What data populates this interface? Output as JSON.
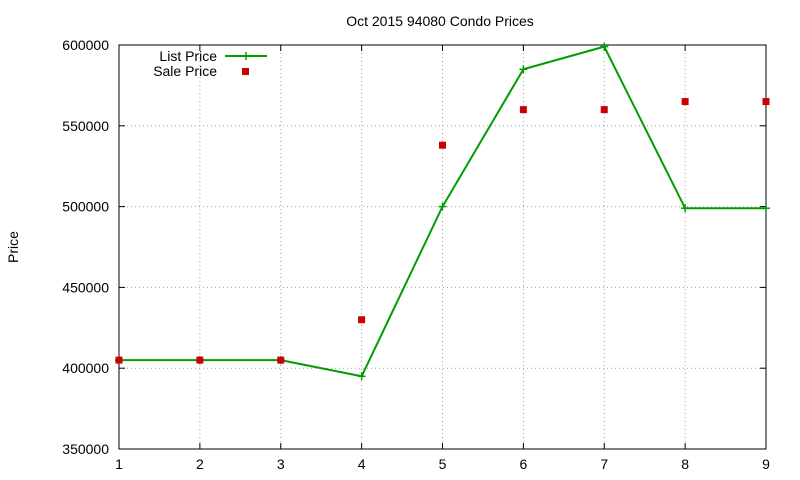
{
  "chart_data": {
    "type": "line",
    "title": "Oct 2015 94080 Condo Prices",
    "xlabel": "",
    "ylabel": "Price",
    "x": [
      1,
      2,
      3,
      4,
      5,
      6,
      7,
      8,
      9
    ],
    "xlim": [
      1,
      9
    ],
    "ylim": [
      350000,
      600000
    ],
    "x_ticks": [
      "1",
      "2",
      "3",
      "4",
      "5",
      "6",
      "7",
      "8",
      "9"
    ],
    "y_ticks": [
      "350000",
      "400000",
      "450000",
      "500000",
      "550000",
      "600000"
    ],
    "grid": true,
    "legend_position": "top-left",
    "series": [
      {
        "name": "List Price",
        "style": "line-with-plus-markers",
        "color": "#009e00",
        "values": [
          405000,
          405000,
          405000,
          395000,
          500000,
          585000,
          599000,
          499000,
          499000
        ]
      },
      {
        "name": "Sale Price",
        "style": "square-points",
        "color": "#cc0000",
        "values": [
          405000,
          405000,
          405000,
          430000,
          538000,
          560000,
          560000,
          565000,
          565000
        ]
      }
    ]
  }
}
